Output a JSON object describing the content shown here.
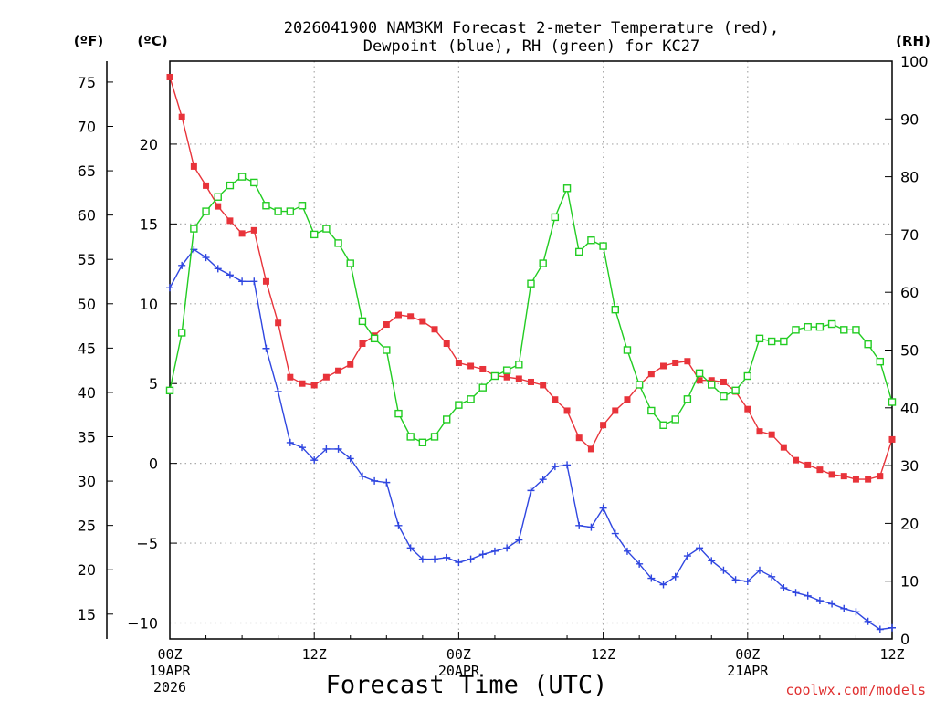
{
  "chart_data": {
    "type": "line",
    "title_line1": "2026041900 NAM3KM Forecast 2-meter Temperature (red),",
    "title_line2": "Dewpoint (blue), RH (green) for KC27",
    "xlabel": "Forecast Time (UTC)",
    "credit": "coolwx.com/models",
    "units": {
      "fahrenheit": "(ºF)",
      "celsius": "(ºC)",
      "rh": "(RH)"
    },
    "x_range_hours": [
      0,
      60
    ],
    "celsius_range": [
      -11,
      25.2
    ],
    "rh_range": [
      0,
      100
    ],
    "fahrenheit_ticks": [
      "75",
      "70",
      "65",
      "60",
      "55",
      "50",
      "45",
      "40",
      "35",
      "30",
      "25",
      "20",
      "15"
    ],
    "celsius_ticks": [
      "20",
      "15",
      "10",
      "5",
      "0",
      "−5",
      "−10"
    ],
    "rh_ticks": [
      "100",
      "90",
      "80",
      "70",
      "60",
      "50",
      "40",
      "30",
      "20",
      "10",
      "0"
    ],
    "x_ticks": [
      {
        "hour": 0,
        "label": "00Z",
        "date": "19APR",
        "year": "2026"
      },
      {
        "hour": 12,
        "label": "12Z",
        "date": "",
        "year": ""
      },
      {
        "hour": 24,
        "label": "00Z",
        "date": "20APR",
        "year": ""
      },
      {
        "hour": 36,
        "label": "12Z",
        "date": "",
        "year": ""
      },
      {
        "hour": 48,
        "label": "00Z",
        "date": "21APR",
        "year": ""
      },
      {
        "hour": 60,
        "label": "12Z",
        "date": "",
        "year": ""
      }
    ],
    "series": [
      {
        "name": "Temperature",
        "unit": "C",
        "color": "#e8333a",
        "marker": "filled-square",
        "values": [
          24.2,
          21.7,
          18.6,
          17.4,
          16.1,
          15.2,
          14.4,
          14.6,
          11.4,
          8.8,
          5.4,
          5.0,
          4.9,
          5.4,
          5.8,
          6.2,
          7.5,
          8.0,
          8.7,
          9.3,
          9.2,
          8.9,
          8.4,
          7.5,
          6.3,
          6.1,
          5.9,
          5.5,
          5.4,
          5.3,
          5.1,
          4.9,
          4.0,
          3.3,
          1.6,
          0.9,
          2.4,
          3.3,
          4.0,
          4.9,
          5.6,
          6.1,
          6.3,
          6.4,
          5.2,
          5.2,
          5.1,
          4.5,
          3.4,
          2.0,
          1.8,
          1.0,
          0.2,
          -0.1,
          -0.4,
          -0.7,
          -0.8,
          -1.0,
          -1.0,
          -0.8,
          1.5
        ]
      },
      {
        "name": "Dewpoint",
        "unit": "C",
        "color": "#2f46e0",
        "marker": "plus",
        "values": [
          11.0,
          12.4,
          13.4,
          12.9,
          12.2,
          11.8,
          11.4,
          11.4,
          7.2,
          4.5,
          1.3,
          1.0,
          0.2,
          0.9,
          0.9,
          0.3,
          -0.8,
          -1.1,
          -1.2,
          -3.9,
          -5.3,
          -6.0,
          -6.0,
          -5.9,
          -6.2,
          -6.0,
          -5.7,
          -5.5,
          -5.3,
          -4.8,
          -1.7,
          -1.0,
          -0.2,
          -0.1,
          -3.9,
          -4.0,
          -2.8,
          -4.4,
          -5.5,
          -6.3,
          -7.2,
          -7.6,
          -7.1,
          -5.8,
          -5.3,
          -6.1,
          -6.7,
          -7.3,
          -7.4,
          -6.7,
          -7.1,
          -7.8,
          -8.1,
          -8.3,
          -8.6,
          -8.8,
          -9.1,
          -9.3,
          -9.9,
          -10.4,
          -10.3
        ]
      },
      {
        "name": "RH",
        "unit": "%",
        "color": "#22cc22",
        "marker": "open-square",
        "values": [
          43,
          53,
          71,
          74,
          76.5,
          78.5,
          80,
          79,
          75,
          74,
          74,
          75,
          70,
          71,
          68.5,
          65,
          55,
          52,
          50,
          39,
          35,
          34,
          35,
          38,
          40.5,
          41.5,
          43.5,
          45.5,
          46.5,
          47.5,
          61.5,
          65,
          73,
          78,
          67,
          69,
          68,
          57,
          50,
          44,
          39.5,
          37,
          38,
          41.5,
          46,
          44,
          42,
          43,
          45.5,
          52,
          51.5,
          51.5,
          53.5,
          54,
          54,
          54.5,
          53.5,
          53.5,
          51,
          48,
          41
        ]
      }
    ]
  }
}
